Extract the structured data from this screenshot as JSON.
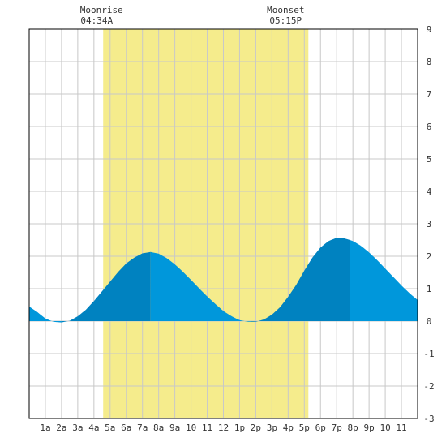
{
  "chart_data": {
    "type": "area",
    "title": "",
    "xlabel": "",
    "ylabel": "",
    "xlim": [
      0,
      24
    ],
    "ylim": [
      -3,
      9
    ],
    "grid": true,
    "x_tick_labels": [
      "1a",
      "2a",
      "3a",
      "4a",
      "5a",
      "6a",
      "7a",
      "8a",
      "9a",
      "10",
      "11",
      "12",
      "1p",
      "2p",
      "3p",
      "4p",
      "5p",
      "6p",
      "7p",
      "8p",
      "9p",
      "10",
      "11"
    ],
    "y_tick_labels": [
      "9",
      "8",
      "7",
      "6",
      "5",
      "4",
      "3",
      "2",
      "1",
      "0",
      "-1",
      "-2",
      "-3"
    ],
    "moon": {
      "rise_label": "Moonrise",
      "rise_time": "04:34A",
      "rise_hour": 4.57,
      "set_label": "Moonset",
      "set_time": "05:15P",
      "set_hour": 17.25,
      "highlight_color": "#f5ec8c"
    },
    "colors": {
      "rising_tide": "#0082c0",
      "falling_tide": "#0097db",
      "grid": "#c8c8c8",
      "axis": "#000000"
    },
    "series": [
      {
        "x": [
          0,
          0.5,
          1,
          1.5,
          2,
          2.5,
          3,
          3.5,
          4,
          4.5,
          5,
          5.5,
          6,
          6.5,
          7,
          7.5,
          8,
          8.5,
          9,
          9.5,
          10,
          10.5,
          11,
          11.5,
          12,
          12.5,
          13,
          13.5,
          14,
          14.5,
          15,
          15.5,
          16,
          16.5,
          17,
          17.5,
          18,
          18.5,
          19,
          19.5,
          20,
          20.5,
          21,
          21.5,
          22,
          22.5,
          23,
          23.5,
          24
        ],
        "y": [
          0.45,
          0.28,
          0.08,
          -0.02,
          -0.04,
          0.01,
          0.15,
          0.35,
          0.62,
          0.92,
          1.22,
          1.52,
          1.78,
          1.96,
          2.09,
          2.13,
          2.08,
          1.94,
          1.75,
          1.52,
          1.27,
          1.01,
          0.76,
          0.53,
          0.31,
          0.15,
          0.03,
          -0.02,
          -0.02,
          0.05,
          0.2,
          0.43,
          0.75,
          1.12,
          1.56,
          1.96,
          2.27,
          2.47,
          2.57,
          2.55,
          2.47,
          2.32,
          2.12,
          1.88,
          1.62,
          1.36,
          1.1,
          0.86,
          0.65
        ]
      }
    ],
    "high_low_turns": [
      {
        "kind": "low",
        "hour": 2.0
      },
      {
        "kind": "high",
        "hour": 7.5
      },
      {
        "kind": "low",
        "hour": 13.7
      },
      {
        "kind": "high",
        "hour": 19.8
      }
    ]
  }
}
